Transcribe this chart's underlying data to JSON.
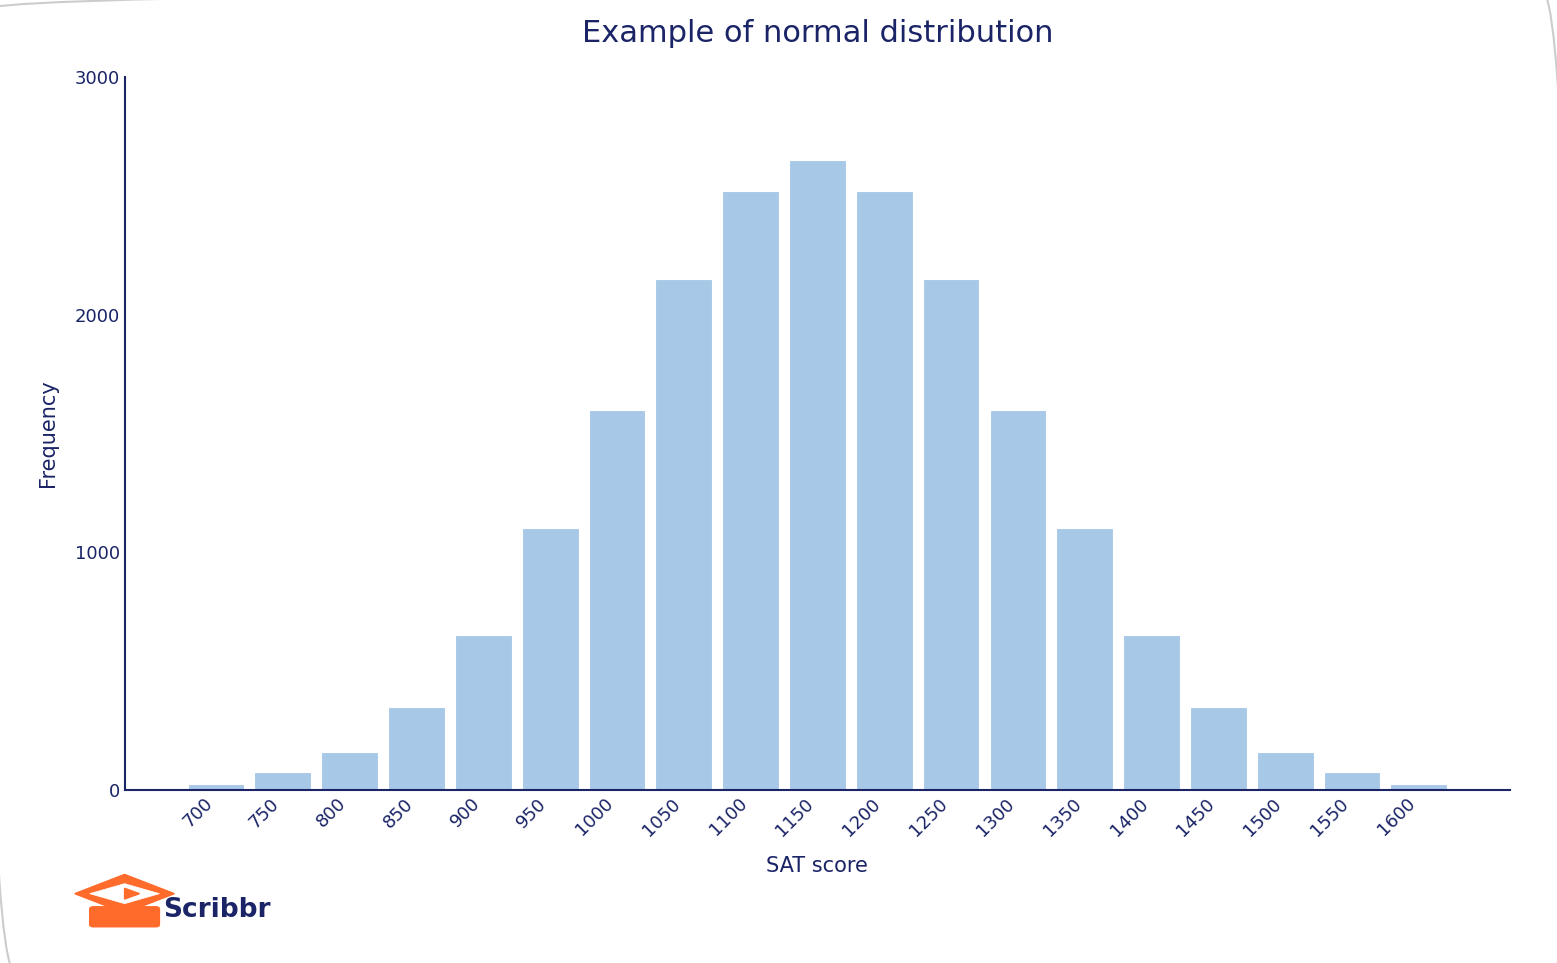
{
  "title": "Example of normal distribution",
  "xlabel": "SAT score",
  "ylabel": "Frequency",
  "bar_color": "#a8c8e8",
  "axis_color": "#1a2466",
  "title_color": "#1a2466",
  "label_color": "#1a2466",
  "tick_color": "#1a2466",
  "background_color": "#ffffff",
  "border_color": "#cccccc",
  "categories": [
    700,
    750,
    800,
    850,
    900,
    950,
    1000,
    1050,
    1100,
    1150,
    1200,
    1250,
    1300,
    1350,
    1400,
    1450,
    1500,
    1550,
    1600
  ],
  "values": [
    25,
    75,
    160,
    350,
    650,
    1100,
    1600,
    2150,
    2520,
    2650,
    2520,
    2150,
    1600,
    1100,
    650,
    350,
    160,
    75,
    25
  ],
  "ylim": [
    0,
    3000
  ],
  "yticks": [
    0,
    1000,
    2000,
    3000
  ],
  "bar_width": 0.85,
  "title_fontsize": 22,
  "axis_label_fontsize": 15,
  "tick_fontsize": 13,
  "scribbr_text": "Scribbr",
  "scribbr_color": "#1a2466",
  "scribbr_icon_color": "#ff6b2b"
}
